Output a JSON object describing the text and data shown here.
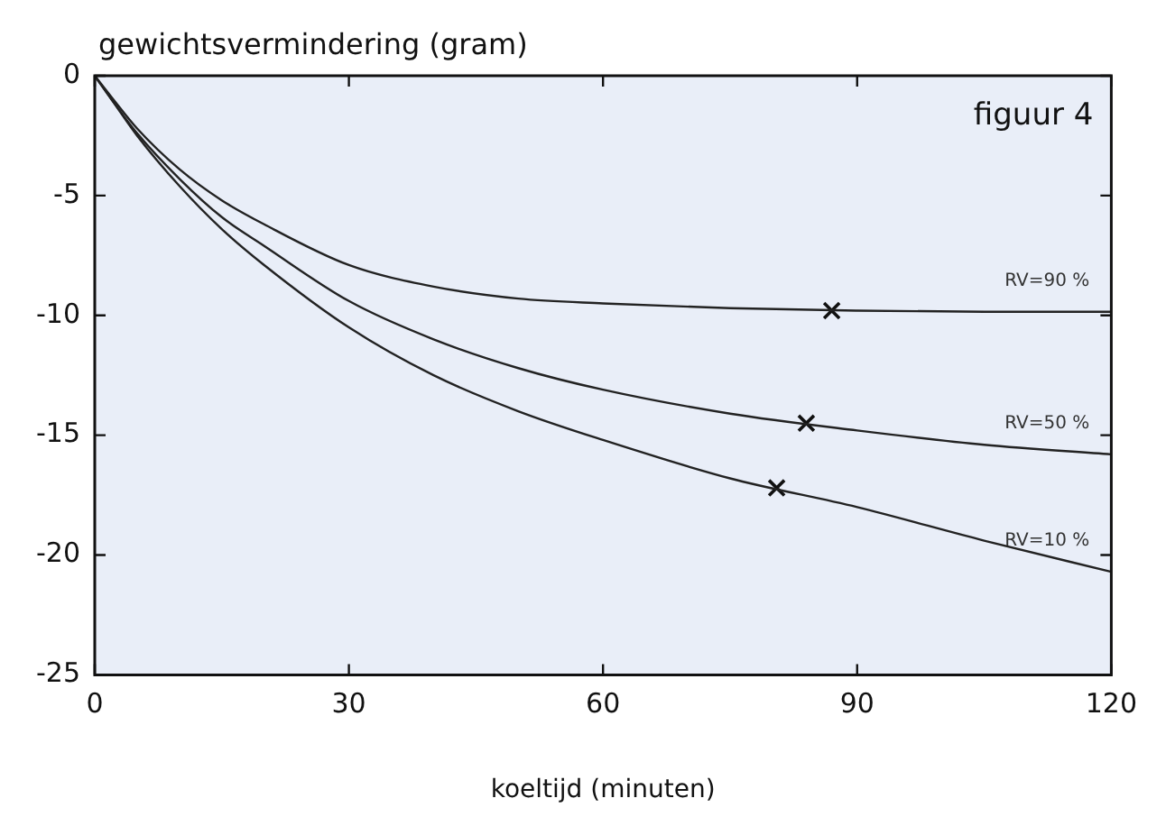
{
  "chart_data": {
    "type": "line",
    "ylabel": "gewichtsvermindering (gram)",
    "xlabel": "koeltijd (minuten)",
    "annotations": [
      "figuur 4"
    ],
    "xlim": [
      0,
      120
    ],
    "xticks": [
      0,
      30,
      60,
      90,
      120
    ],
    "ylim": [
      -25,
      0
    ],
    "yticks": [
      -25,
      -20,
      -15,
      -10,
      -5,
      0
    ],
    "grid": false,
    "legend": false,
    "marker": "none",
    "series": [
      {
        "name": "RV=90 %",
        "color": "#222222",
        "x": [
          0,
          2,
          5,
          10,
          15,
          20,
          30,
          40,
          50,
          60,
          75,
          90,
          105,
          120
        ],
        "values": [
          0,
          -0.9,
          -2.2,
          -3.9,
          -5.2,
          -6.2,
          -7.9,
          -8.8,
          -9.3,
          -9.5,
          -9.7,
          -9.8,
          -9.85,
          -9.85
        ]
      },
      {
        "name": "RV=50 %",
        "color": "#222222",
        "x": [
          0,
          2,
          5,
          10,
          15,
          20,
          30,
          40,
          50,
          60,
          75,
          90,
          105,
          120
        ],
        "values": [
          0,
          -1,
          -2.4,
          -4.3,
          -5.9,
          -7.1,
          -9.4,
          -11.0,
          -12.2,
          -13.1,
          -14.1,
          -14.8,
          -15.4,
          -15.8
        ]
      },
      {
        "name": "RV=10 %",
        "color": "#222222",
        "x": [
          0,
          2,
          5,
          10,
          15,
          20,
          30,
          40,
          50,
          60,
          75,
          90,
          105,
          120
        ],
        "values": [
          0,
          -1,
          -2.5,
          -4.6,
          -6.4,
          -7.9,
          -10.5,
          -12.5,
          -14.0,
          -15.2,
          -16.8,
          -18.0,
          -19.4,
          -20.7
        ]
      },
      {
        "type": "scatter",
        "marker": "cross",
        "color": "#111111",
        "x": [
          87,
          84,
          80.5
        ],
        "values": [
          -9.8,
          -14.5,
          -17.2
        ]
      }
    ]
  }
}
